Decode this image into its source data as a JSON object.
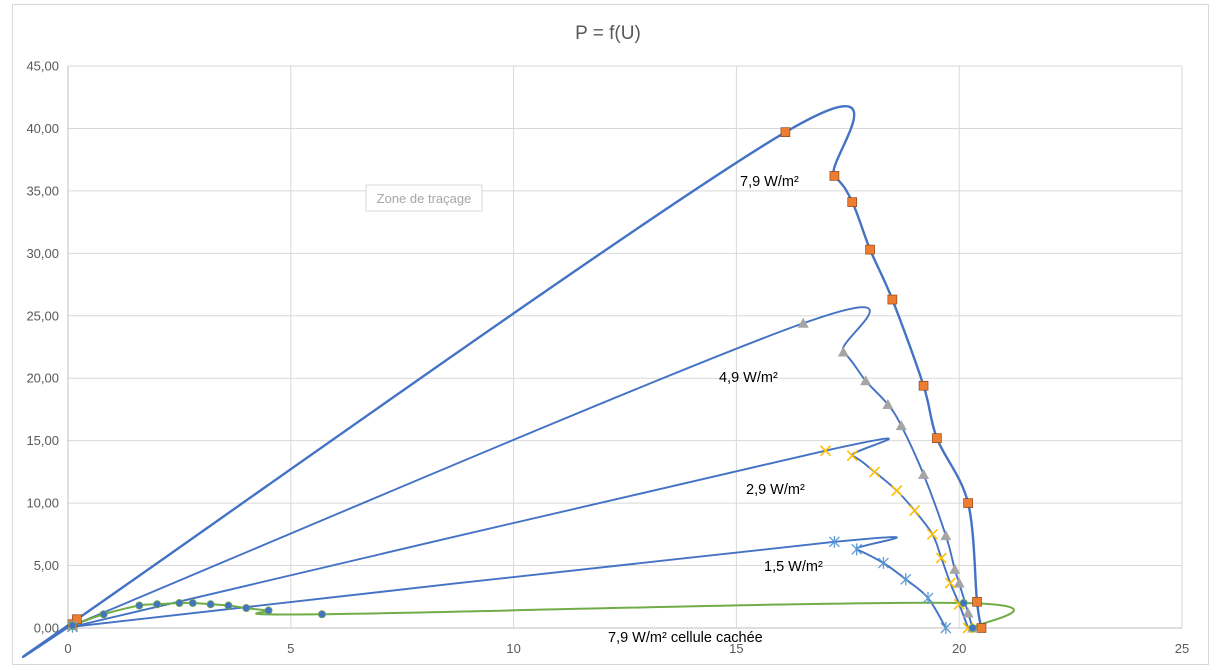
{
  "chart_data": {
    "type": "scatter",
    "title": "P = f(U)",
    "xlabel": "",
    "ylabel": "",
    "xlim": [
      0,
      25
    ],
    "ylim": [
      0,
      45
    ],
    "x_ticks": [
      0,
      5,
      10,
      15,
      20,
      25
    ],
    "y_ticks": [
      "0,00",
      "5,00",
      "10,00",
      "15,00",
      "20,00",
      "25,00",
      "30,00",
      "35,00",
      "40,00",
      "45,00"
    ],
    "grid": true,
    "plot_area_tag": "Zone de traçage",
    "series": [
      {
        "name": "7,9 W/m²",
        "line_color": "#4472c4",
        "marker": "square",
        "marker_color": "#ed7d31",
        "points": [
          [
            0.1,
            0.3
          ],
          [
            0.2,
            0.7
          ],
          [
            16.1,
            39.7
          ],
          [
            17.2,
            36.2
          ],
          [
            17.6,
            34.1
          ],
          [
            18.0,
            30.3
          ],
          [
            18.5,
            26.3
          ],
          [
            19.2,
            19.4
          ],
          [
            19.5,
            15.2
          ],
          [
            20.2,
            10.0
          ],
          [
            20.4,
            2.1
          ],
          [
            20.5,
            0.0
          ]
        ]
      },
      {
        "name": "4,9 W/m²",
        "line_color": "#4472c4",
        "marker": "triangle",
        "marker_color": "#a5a5a5",
        "points": [
          [
            0.1,
            0.2
          ],
          [
            16.5,
            24.4
          ],
          [
            17.4,
            22.1
          ],
          [
            17.9,
            19.8
          ],
          [
            18.4,
            17.9
          ],
          [
            18.7,
            16.2
          ],
          [
            19.2,
            12.3
          ],
          [
            19.7,
            7.4
          ],
          [
            19.9,
            4.7
          ],
          [
            20.0,
            3.6
          ],
          [
            20.2,
            1.2
          ],
          [
            20.3,
            0.0
          ]
        ]
      },
      {
        "name": "2,9 W/m²",
        "line_color": "#4472c4",
        "marker": "x",
        "marker_color": "#ffc000",
        "points": [
          [
            0.1,
            0.1
          ],
          [
            17.0,
            14.2
          ],
          [
            17.6,
            13.8
          ],
          [
            18.1,
            12.5
          ],
          [
            18.6,
            11.0
          ],
          [
            19.0,
            9.4
          ],
          [
            19.4,
            7.5
          ],
          [
            19.6,
            5.6
          ],
          [
            19.8,
            3.6
          ],
          [
            20.0,
            1.9
          ],
          [
            20.2,
            0.0
          ]
        ]
      },
      {
        "name": "1,5 W/m²",
        "line_color": "#4472c4",
        "marker": "star",
        "marker_color": "#5b9bd5",
        "points": [
          [
            0.1,
            0.1
          ],
          [
            17.2,
            6.9
          ],
          [
            17.7,
            6.3
          ],
          [
            18.3,
            5.2
          ],
          [
            18.8,
            3.9
          ],
          [
            19.3,
            2.4
          ],
          [
            19.7,
            0.0
          ]
        ]
      },
      {
        "name": "7,9 W/m² cellule cachée",
        "line_color": "#70ad47",
        "marker": "circle",
        "marker_color": "#4472c4",
        "points": [
          [
            0.1,
            0.2
          ],
          [
            0.8,
            1.1
          ],
          [
            1.6,
            1.8
          ],
          [
            2.0,
            1.9
          ],
          [
            2.5,
            2.0
          ],
          [
            2.8,
            2.0
          ],
          [
            3.2,
            1.9
          ],
          [
            3.6,
            1.8
          ],
          [
            4.0,
            1.6
          ],
          [
            4.5,
            1.4
          ],
          [
            5.7,
            1.1
          ],
          [
            20.1,
            2.0
          ],
          [
            20.3,
            0.0
          ]
        ]
      }
    ]
  }
}
